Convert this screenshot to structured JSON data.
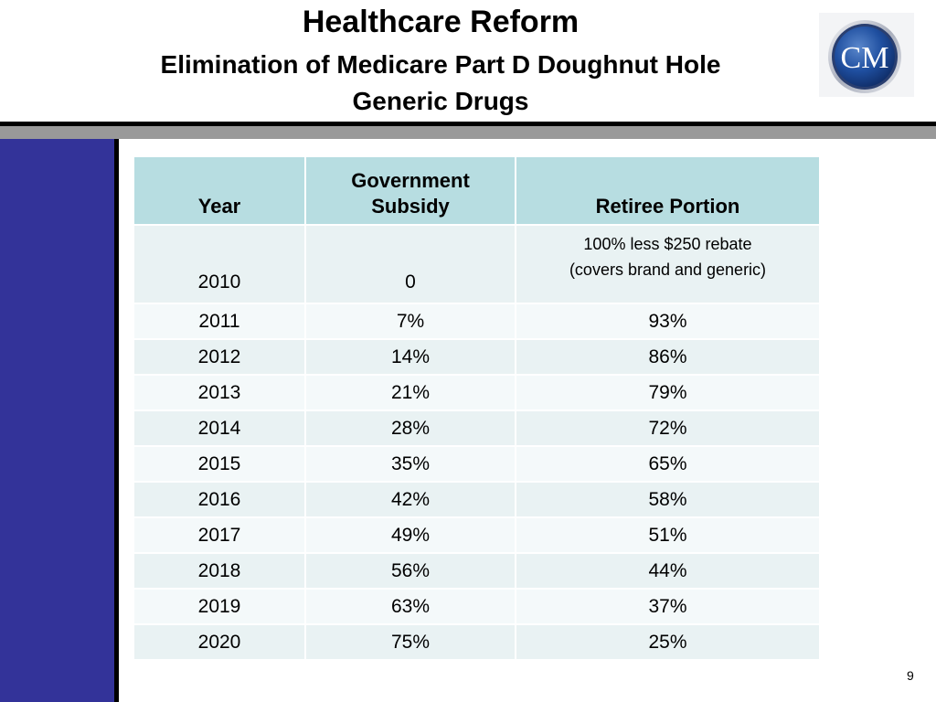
{
  "header": {
    "title": "Healthcare Reform",
    "subtitle": "Elimination of Medicare Part D Doughnut Hole",
    "subtitle2": "Generic Drugs"
  },
  "logo": {
    "text": "CM",
    "colors": {
      "outer": "#2a4a8a",
      "ring": "#c8ccd6",
      "inner": "#1f4fa0",
      "text": "#ffffff"
    }
  },
  "colors": {
    "sidebar": "#333399",
    "divider": "#999999",
    "header_row": "#b7dde1",
    "row_alt_1": "#e9f2f3",
    "row_alt_2": "#f4f9fa"
  },
  "table": {
    "headers": {
      "year": "Year",
      "subsidy_line1": "Government",
      "subsidy_line2": "Subsidy",
      "retiree": "Retiree Portion"
    },
    "first_row": {
      "year": "2010",
      "subsidy": "0",
      "retiree_line1": "100% less $250 rebate",
      "retiree_line2": "(covers brand and generic)"
    },
    "rows": [
      {
        "year": "2011",
        "subsidy": "7%",
        "retiree": "93%"
      },
      {
        "year": "2012",
        "subsidy": "14%",
        "retiree": "86%"
      },
      {
        "year": "2013",
        "subsidy": "21%",
        "retiree": "79%"
      },
      {
        "year": "2014",
        "subsidy": "28%",
        "retiree": "72%"
      },
      {
        "year": "2015",
        "subsidy": "35%",
        "retiree": "65%"
      },
      {
        "year": "2016",
        "subsidy": "42%",
        "retiree": "58%"
      },
      {
        "year": "2017",
        "subsidy": "49%",
        "retiree": "51%"
      },
      {
        "year": "2018",
        "subsidy": "56%",
        "retiree": "44%"
      },
      {
        "year": "2019",
        "subsidy": "63%",
        "retiree": "37%"
      },
      {
        "year": "2020",
        "subsidy": "75%",
        "retiree": "25%"
      }
    ]
  },
  "footer": {
    "page_number": "9"
  }
}
